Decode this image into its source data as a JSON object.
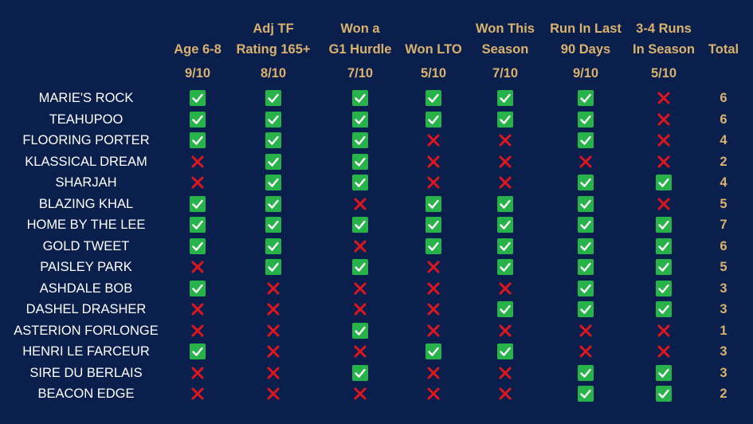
{
  "headers": [
    {
      "l1": "",
      "l2": "Age 6-8",
      "score": "9/10"
    },
    {
      "l1": "Adj TF",
      "l2": "Rating 165+",
      "score": "8/10"
    },
    {
      "l1": "Won a",
      "l2": "G1 Hurdle",
      "score": "7/10"
    },
    {
      "l1": "",
      "l2": "Won LTO",
      "score": "5/10"
    },
    {
      "l1": "Won This",
      "l2": "Season",
      "score": "7/10"
    },
    {
      "l1": "Run In Last",
      "l2": "90 Days",
      "score": "9/10"
    },
    {
      "l1": "3-4 Runs",
      "l2": "In Season",
      "score": "5/10"
    }
  ],
  "total_header": "Total",
  "rows": [
    {
      "name": "MARIE'S ROCK",
      "marks": [
        1,
        1,
        1,
        1,
        1,
        1,
        0
      ],
      "total": "6"
    },
    {
      "name": "TEAHUPOO",
      "marks": [
        1,
        1,
        1,
        1,
        1,
        1,
        0
      ],
      "total": "6"
    },
    {
      "name": "FLOORING PORTER",
      "marks": [
        1,
        1,
        1,
        0,
        0,
        1,
        0
      ],
      "total": "4"
    },
    {
      "name": "KLASSICAL DREAM",
      "marks": [
        0,
        1,
        1,
        0,
        0,
        0,
        0
      ],
      "total": "2"
    },
    {
      "name": "SHARJAH",
      "marks": [
        0,
        1,
        1,
        0,
        0,
        1,
        1
      ],
      "total": "4"
    },
    {
      "name": "BLAZING KHAL",
      "marks": [
        1,
        1,
        0,
        1,
        1,
        1,
        0
      ],
      "total": "5"
    },
    {
      "name": "HOME BY THE LEE",
      "marks": [
        1,
        1,
        1,
        1,
        1,
        1,
        1
      ],
      "total": "7"
    },
    {
      "name": "GOLD TWEET",
      "marks": [
        1,
        1,
        0,
        1,
        1,
        1,
        1
      ],
      "total": "6"
    },
    {
      "name": "PAISLEY PARK",
      "marks": [
        0,
        1,
        1,
        0,
        1,
        1,
        1
      ],
      "total": "5"
    },
    {
      "name": "ASHDALE BOB",
      "marks": [
        1,
        0,
        0,
        0,
        0,
        1,
        1
      ],
      "total": "3"
    },
    {
      "name": "DASHEL DRASHER",
      "marks": [
        0,
        0,
        0,
        0,
        1,
        1,
        1
      ],
      "total": "3"
    },
    {
      "name": "ASTERION FORLONGE",
      "marks": [
        0,
        0,
        1,
        0,
        0,
        0,
        0
      ],
      "total": "1"
    },
    {
      "name": "HENRI LE FARCEUR",
      "marks": [
        1,
        0,
        0,
        1,
        1,
        0,
        0
      ],
      "total": "3"
    },
    {
      "name": "SIRE DU BERLAIS",
      "marks": [
        0,
        0,
        1,
        0,
        0,
        1,
        1
      ],
      "total": "3"
    },
    {
      "name": "BEACON EDGE",
      "marks": [
        0,
        0,
        0,
        0,
        0,
        1,
        1
      ],
      "total": "2"
    }
  ],
  "colors": {
    "background": "#0b1f4d",
    "header": "#d9b26e",
    "check": "#27b24a",
    "cross": "#e0161f"
  }
}
